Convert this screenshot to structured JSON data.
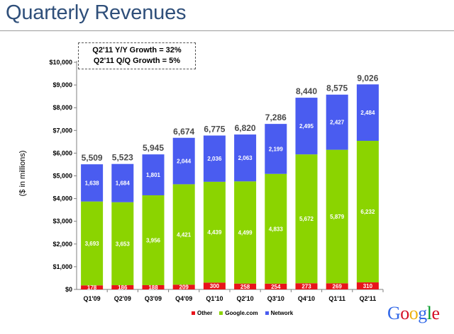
{
  "page": {
    "title": "Quarterly Revenues",
    "box_lines": [
      "Q2'11 Y/Y Growth = 32%",
      "Q2'11 Q/Q Growth = 5%"
    ],
    "logo_text": "Google",
    "logo_colors": [
      "#3369e8",
      "#d50f25",
      "#eeb211",
      "#3369e8",
      "#009925",
      "#d50f25"
    ]
  },
  "chart_data": {
    "type": "bar",
    "stacked": true,
    "categories": [
      "Q1'09",
      "Q2'09",
      "Q3'09",
      "Q4'09",
      "Q1'10",
      "Q2'10",
      "Q3'10",
      "Q4'10",
      "Q1'11",
      "Q2'11"
    ],
    "series": [
      {
        "name": "Other",
        "color": "#e8131b",
        "values": [
          178,
          186,
          188,
          209,
          300,
          258,
          254,
          273,
          269,
          310
        ]
      },
      {
        "name": "Google.com",
        "color": "#8bd400",
        "values": [
          3693,
          3653,
          3956,
          4421,
          4439,
          4499,
          4833,
          5672,
          5879,
          6232
        ]
      },
      {
        "name": "Network",
        "color": "#4a5cf0",
        "values": [
          1638,
          1684,
          1801,
          2044,
          2036,
          2063,
          2199,
          2495,
          2427,
          2484
        ]
      }
    ],
    "totals": [
      "5,509",
      "5,523",
      "5,945",
      "6,674",
      "6,775",
      "6,820",
      "7,286",
      "8,440",
      "8,575",
      "9,026"
    ],
    "series_labels": [
      [
        "178",
        "186",
        "188",
        "209",
        "300",
        "258",
        "254",
        "273",
        "269",
        "310"
      ],
      [
        "3,693",
        "3,653",
        "3,956",
        "4,421",
        "4,439",
        "4,499",
        "4,833",
        "5,672",
        "5,879",
        "6,232"
      ],
      [
        "1,638",
        "1,684",
        "1,801",
        "2,044",
        "2,036",
        "2,063",
        "2,199",
        "2,495",
        "2,427",
        "2,484"
      ]
    ],
    "yticks": [
      0,
      1000,
      2000,
      3000,
      4000,
      5000,
      6000,
      7000,
      8000,
      9000,
      10000
    ],
    "ytick_labels": [
      "$0",
      "$1,000",
      "$2,000",
      "$3,000",
      "$4,000",
      "$5,000",
      "$6,000",
      "$7,000",
      "$8,000",
      "$9,000",
      "$10,000"
    ],
    "ylim": [
      0,
      10000
    ],
    "ylabel": "($ in millions)",
    "xlabel": "",
    "legend_position": "bottom",
    "grid": false
  }
}
